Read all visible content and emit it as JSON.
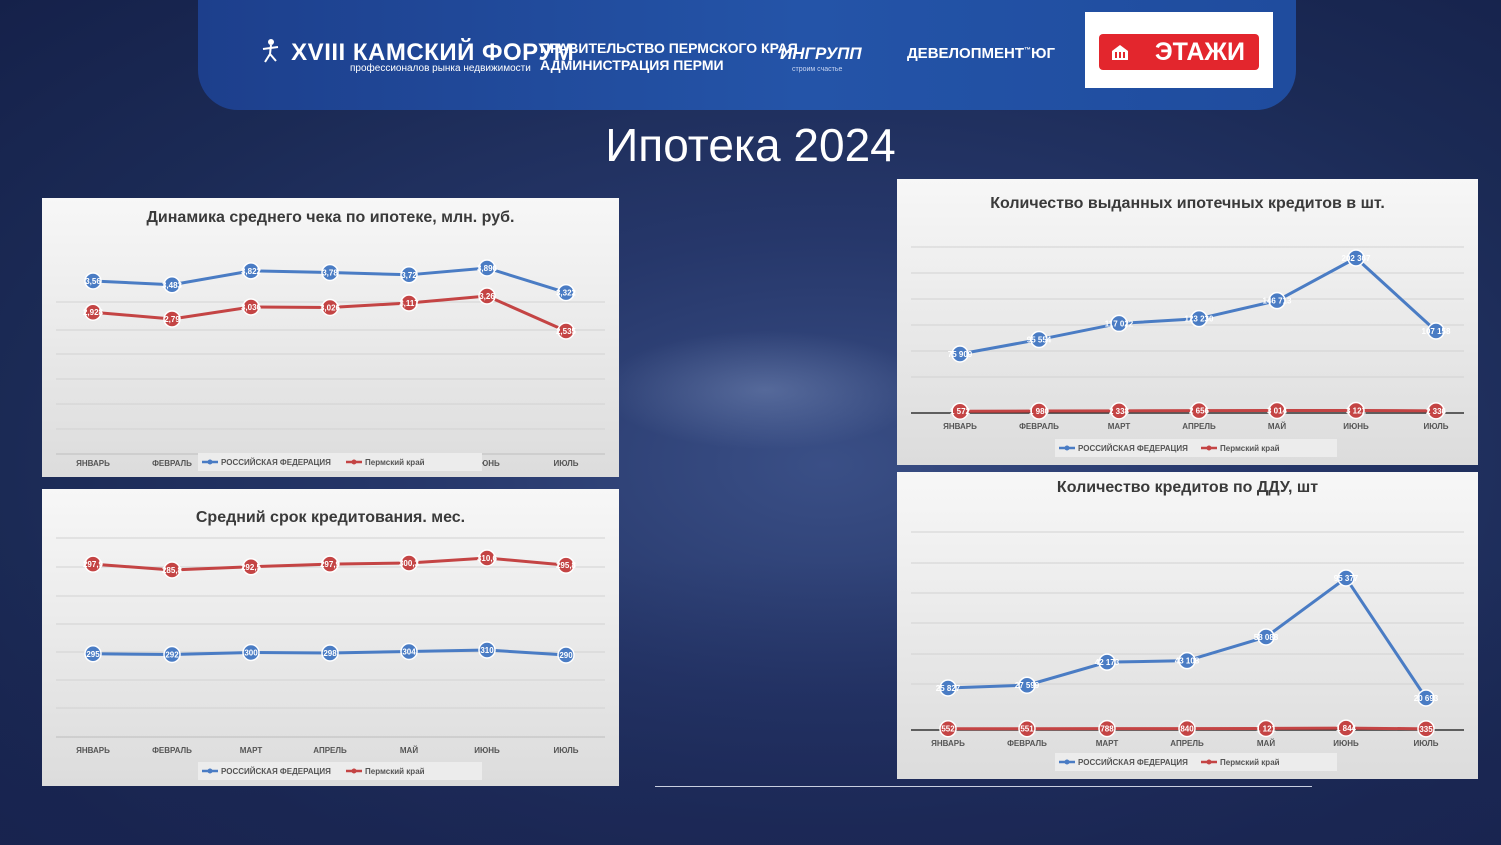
{
  "header": {
    "forum_title": "XVIII КАМСКИЙ ФОРУМ",
    "forum_subtitle": "профессионалов рынка недвижимости",
    "gov_line1": "ПРАВИТЕЛЬСТВО ПЕРМСКОГО КРАЯ",
    "gov_line2": "АДМИНИСТРАЦИЯ ПЕРМИ",
    "ingroup": "ИНГРУПП",
    "ingroup_sub": "строим счастье",
    "develop": "ДЕВЕЛОПМЕНТ",
    "develop_tm": "™",
    "develop_suffix": "ЮГ",
    "etazhi": "ЭТАЖИ"
  },
  "page_title": "Ипотека 2024",
  "colors": {
    "rf": "#4a7cc4",
    "perm": "#c44444",
    "header": "#2454a8"
  },
  "chart_data": [
    {
      "type": "line",
      "title": "Динамика среднего чека по ипотеке, млн. руб.",
      "categories": [
        "ЯНВАРЬ",
        "ФЕВРАЛЬ",
        "",
        "",
        "",
        "ИЮНЬ",
        "ИЮЛЬ"
      ],
      "series": [
        {
          "name": "РОССИЙСКАЯ ФЕДЕРАЦИЯ",
          "values": [
            3.56,
            3.483,
            3.822,
            3.78,
            3.72,
            3.896,
            3.322
          ],
          "labels": [
            "3,56",
            "3,483",
            "3,822",
            "3,78",
            "3,72",
            "3,896",
            "3,322"
          ]
        },
        {
          "name": "Пермский край",
          "values": [
            2.928,
            2.79,
            3.036,
            3.026,
            3.117,
            3.26,
            2.535
          ],
          "labels": [
            "2,928",
            "2,79",
            "3,036",
            "3,026",
            "3,117",
            "3,26",
            "2,535"
          ]
        }
      ],
      "ylim": [
        0,
        5
      ],
      "grid": true,
      "legend": "bottom"
    },
    {
      "type": "line",
      "title": "Количество выданных ипотечных кредитов в шт.",
      "categories": [
        "ЯНВАРЬ",
        "ФЕВРАЛЬ",
        "МАРТ",
        "АПРЕЛЬ",
        "МАЙ",
        "ИЮНЬ",
        "ИЮЛЬ"
      ],
      "series": [
        {
          "name": "РОССИЙСКАЯ ФЕДЕРАЦИЯ",
          "values": [
            75909,
            95554,
            117022,
            123230,
            146713,
            202367,
            107158
          ],
          "labels": [
            "75 909",
            "95 554",
            "117 022",
            "123 230",
            "146 713",
            "202 367",
            "107 158"
          ]
        },
        {
          "name": "Пермский край",
          "values": [
            1572,
            1980,
            2338,
            2656,
            3014,
            3121,
            2336
          ],
          "labels": [
            "1 572",
            "1 980",
            "2 338",
            "2 656",
            "3 014",
            "3 121",
            "2 336"
          ]
        }
      ],
      "ylim": [
        0,
        250000
      ],
      "grid": true,
      "legend": "bottom"
    },
    {
      "type": "line",
      "title": "Средний срок кредитования. мес.",
      "categories": [
        "ЯНВАРЬ",
        "ФЕВРАЛЬ",
        "МАРТ",
        "АПРЕЛЬ",
        "МАЙ",
        "ИЮНЬ",
        "ИЮЛЬ"
      ],
      "series": [
        {
          "name": "РОССИЙСКАЯ ФЕДЕРАЦИЯ",
          "values": [
            295,
            292,
            300,
            298,
            304,
            310,
            290
          ],
          "labels": [
            "295",
            "292",
            "300",
            "298",
            "304",
            "310",
            "290"
          ]
        },
        {
          "name": "Пермский край",
          "values": [
            297.9,
            285.8,
            292.5,
            297.9,
            300.3,
            310.6,
            295.8
          ],
          "labels": [
            "297,9",
            "285,8",
            "292,5",
            "297,9",
            "300,3",
            "310,6",
            "295,8"
          ]
        }
      ],
      "grid": true,
      "legend": "bottom"
    },
    {
      "type": "line",
      "title": "Количество кредитов по ДДУ, шт",
      "categories": [
        "ЯНВАРЬ",
        "ФЕВРАЛЬ",
        "МАРТ",
        "АПРЕЛЬ",
        "МАЙ",
        "ИЮНЬ",
        "ИЮЛЬ"
      ],
      "series": [
        {
          "name": "РОССИЙСКАЯ ФЕДЕРАЦИЯ",
          "values": [
            25827,
            27599,
            42173,
            43108,
            58088,
            95377,
            20693
          ],
          "labels": [
            "25 827",
            "27 599",
            "42 173",
            "43 108",
            "58 088",
            "95 377",
            "20 693"
          ]
        },
        {
          "name": "Пермский край",
          "values": [
            552,
            551,
            788,
            840,
            1121,
            1844,
            335
          ],
          "labels": [
            "552",
            "551",
            "788",
            "840",
            "1 121",
            "1 844",
            "335"
          ]
        }
      ],
      "ylim": [
        0,
        120000
      ],
      "grid": true,
      "legend": "bottom"
    }
  ]
}
